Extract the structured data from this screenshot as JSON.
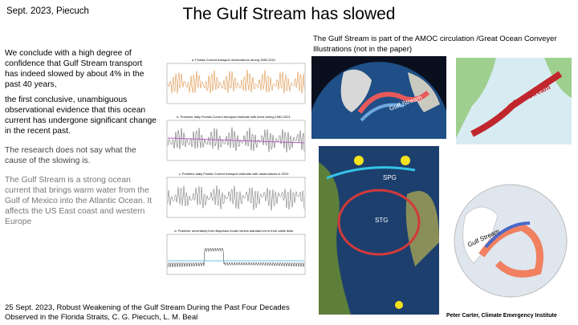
{
  "header": {
    "date_author": "Sept. 2023, Piecuch",
    "title": "The Gulf Stream has slowed"
  },
  "body": {
    "paragraphs": [
      "We conclude with a high degree of confidence that Gulf Stream transport has indeed slowed by about 4% in the past 40 years,",
      "the first conclusive, unambiguous observational evidence that this ocean current has undergone significant change in the recent past.",
      "The research does not say what the cause of the slowing is.",
      "The Gulf Stream is a strong ocean current that brings warm water from the Gulf of Mexico into the Atlantic Ocean. It affects the US East coast and western Europe"
    ]
  },
  "figure": {
    "panels": [
      "a. Florida Current transport observations during 1982-2021",
      "b. Posterior daily Florida Current transport estimate with trend during 1982-2021",
      "c. Posterior daily Florida Current transport estimate with observations in 2019",
      "d. Posterior uncertainty from Bayesian model versus standard error from cable data"
    ]
  },
  "illustrations": {
    "caption": "The Gulf Stream is part of the AMOC circulation /Great Ocean Conveyer Illustrations   (not in the paper)",
    "labels": {
      "globe": "Gulf Stream",
      "map": "Gulf Stream",
      "stg": "STG",
      "spg": "SPG",
      "globe2": "Gulf Stream"
    }
  },
  "footer": {
    "citation": "25 Sept. 2023, Robust Weakening of the Gulf Stream During the Past Four Decades Observed in the Florida Straits, C. G. Piecuch, L. M. Beal",
    "credit": "Peter Carter, Climate Emergency Institute"
  }
}
